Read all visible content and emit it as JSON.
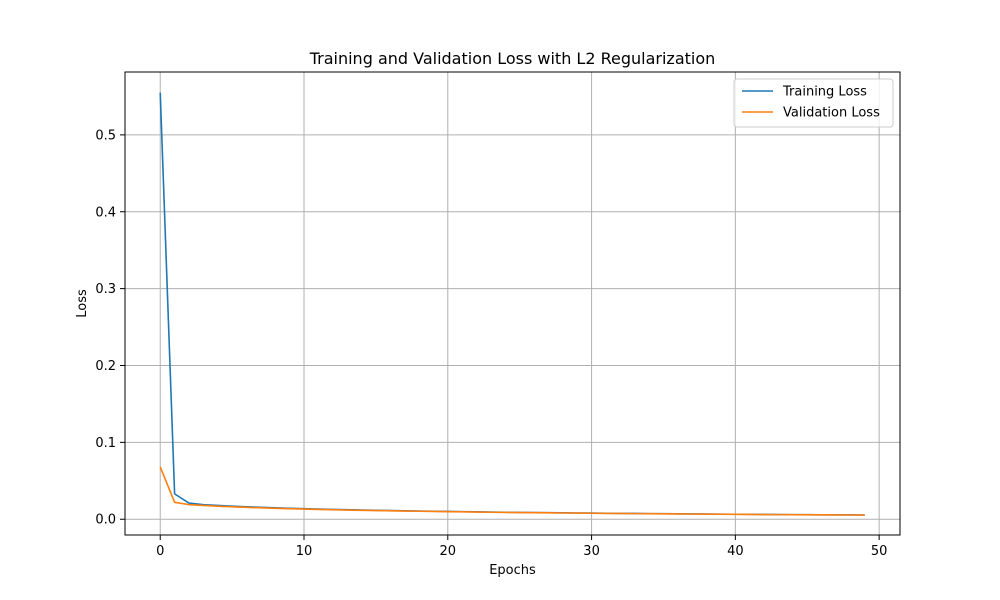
{
  "chart_data": {
    "type": "line",
    "title": "Training and Validation Loss with L2 Regularization",
    "xlabel": "Epochs",
    "ylabel": "Loss",
    "xlim": [
      -2.45,
      51.45
    ],
    "ylim": [
      -0.0205,
      0.5818
    ],
    "xticks": [
      0,
      10,
      20,
      30,
      40,
      50
    ],
    "xtick_labels": [
      "0",
      "10",
      "20",
      "30",
      "40",
      "50"
    ],
    "yticks": [
      0.0,
      0.1,
      0.2,
      0.3,
      0.4,
      0.5
    ],
    "ytick_labels": [
      "0.0",
      "0.1",
      "0.2",
      "0.3",
      "0.4",
      "0.5"
    ],
    "grid": true,
    "legend_position": "top-right",
    "x": [
      0,
      1,
      2,
      3,
      4,
      5,
      6,
      7,
      8,
      9,
      10,
      11,
      12,
      13,
      14,
      15,
      16,
      17,
      18,
      19,
      20,
      21,
      22,
      23,
      24,
      25,
      26,
      27,
      28,
      29,
      30,
      31,
      32,
      33,
      34,
      35,
      36,
      37,
      38,
      39,
      40,
      41,
      42,
      43,
      44,
      45,
      46,
      47,
      48,
      49
    ],
    "series": [
      {
        "name": "Training Loss",
        "color": "#1f77b4",
        "values": [
          0.555,
          0.033,
          0.021,
          0.019,
          0.018,
          0.017,
          0.0162,
          0.0155,
          0.0148,
          0.0142,
          0.0137,
          0.0132,
          0.0128,
          0.0124,
          0.012,
          0.0116,
          0.0113,
          0.011,
          0.0107,
          0.0104,
          0.0101,
          0.0098,
          0.0096,
          0.0093,
          0.0091,
          0.0089,
          0.0087,
          0.0085,
          0.0083,
          0.0081,
          0.008,
          0.0078,
          0.0076,
          0.0075,
          0.0073,
          0.0072,
          0.007,
          0.0069,
          0.0068,
          0.0066,
          0.0065,
          0.0064,
          0.0062,
          0.0061,
          0.006,
          0.0059,
          0.0058,
          0.0057,
          0.0056,
          0.0055
        ]
      },
      {
        "name": "Validation Loss",
        "color": "#ff7f0e",
        "values": [
          0.068,
          0.022,
          0.019,
          0.018,
          0.017,
          0.0162,
          0.0155,
          0.0148,
          0.0142,
          0.0137,
          0.0132,
          0.0128,
          0.0124,
          0.012,
          0.0116,
          0.0113,
          0.011,
          0.0107,
          0.0104,
          0.0101,
          0.0098,
          0.0096,
          0.0093,
          0.0091,
          0.0089,
          0.0087,
          0.0085,
          0.0083,
          0.0081,
          0.008,
          0.0078,
          0.0076,
          0.0075,
          0.0073,
          0.0072,
          0.007,
          0.0069,
          0.0068,
          0.0066,
          0.0065,
          0.0064,
          0.0062,
          0.0061,
          0.006,
          0.0059,
          0.0058,
          0.0057,
          0.0056,
          0.0055,
          0.0054
        ]
      }
    ]
  }
}
